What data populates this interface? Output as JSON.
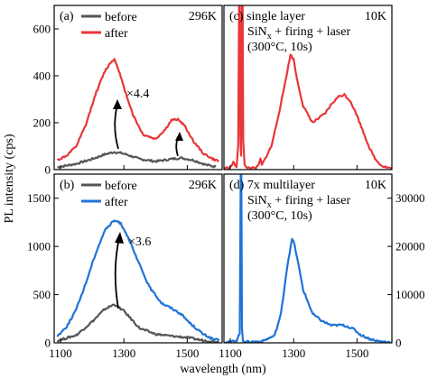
{
  "figure": {
    "ylabel": "PL intensity (cps)",
    "xlabel": "wavelength (nm)"
  },
  "chart_data": [
    {
      "type": "line",
      "panel": "(a)",
      "temperature": "296K",
      "legend": [
        "before",
        "after"
      ],
      "annotation": "×4.4",
      "ylim": [
        0,
        700
      ],
      "yticks": [
        "0",
        "200",
        "400",
        "600"
      ],
      "xlim": [
        1080,
        1610
      ],
      "xticks": [
        1100,
        1300,
        1500
      ],
      "series": [
        {
          "name": "before",
          "color": "#555555",
          "x": [
            1090,
            1150,
            1200,
            1240,
            1270,
            1300,
            1350,
            1400,
            1450,
            1480,
            1520,
            1560,
            1590
          ],
          "y": [
            10,
            25,
            45,
            65,
            75,
            68,
            45,
            35,
            45,
            50,
            40,
            20,
            12
          ]
        },
        {
          "name": "after",
          "color": "#e8363a",
          "x": [
            1090,
            1120,
            1150,
            1180,
            1210,
            1240,
            1260,
            1270,
            1280,
            1300,
            1330,
            1360,
            1400,
            1430,
            1450,
            1470,
            1490,
            1520,
            1550,
            1580,
            1600
          ],
          "y": [
            40,
            60,
            100,
            190,
            320,
            420,
            460,
            470,
            440,
            350,
            230,
            150,
            130,
            170,
            210,
            215,
            190,
            120,
            70,
            45,
            35
          ]
        }
      ]
    },
    {
      "type": "line",
      "panel": "(b)",
      "temperature": "296K",
      "legend": [
        "before",
        "after"
      ],
      "annotation": "×3.6",
      "ylim": [
        0,
        1750
      ],
      "yticks": [
        "0",
        "500",
        "1000",
        "1500"
      ],
      "xlim": [
        1080,
        1610
      ],
      "xticks": [
        1100,
        1300,
        1500
      ],
      "series": [
        {
          "name": "before",
          "color": "#555555",
          "x": [
            1090,
            1150,
            1200,
            1240,
            1270,
            1300,
            1350,
            1400,
            1450,
            1500,
            1550,
            1600
          ],
          "y": [
            20,
            80,
            220,
            350,
            400,
            330,
            150,
            90,
            70,
            55,
            25,
            10
          ]
        },
        {
          "name": "after",
          "color": "#1f73d8",
          "x": [
            1090,
            1120,
            1150,
            1180,
            1210,
            1240,
            1270,
            1290,
            1310,
            1340,
            1380,
            1420,
            1450,
            1480,
            1510,
            1550,
            1580,
            1600
          ],
          "y": [
            70,
            170,
            350,
            620,
            920,
            1170,
            1270,
            1240,
            1120,
            880,
            580,
            410,
            360,
            300,
            200,
            90,
            40,
            25
          ]
        }
      ]
    },
    {
      "type": "line",
      "panel": "(c)",
      "title_lines": [
        "single layer",
        "SiNx + firing + laser",
        "(300°C, 10s)"
      ],
      "temperature": "10K",
      "ylim": [
        0,
        700
      ],
      "xlim": [
        1080,
        1610
      ],
      "xticks": [
        1100,
        1300,
        1500
      ],
      "series": [
        {
          "name": "",
          "color": "#e8363a",
          "x": [
            1080,
            1100,
            1110,
            1120,
            1125,
            1128,
            1130,
            1132,
            1134,
            1137,
            1139,
            1141,
            1145,
            1150,
            1180,
            1190,
            1195,
            1200,
            1230,
            1260,
            1280,
            1290,
            1300,
            1310,
            1330,
            1360,
            1400,
            1420,
            1440,
            1460,
            1480,
            1500,
            1520,
            1540,
            1560,
            1580,
            1600,
            1610
          ],
          "y": [
            5,
            10,
            30,
            10,
            100,
            700,
            700,
            150,
            60,
            700,
            700,
            120,
            20,
            10,
            5,
            20,
            45,
            20,
            100,
            280,
            420,
            490,
            470,
            390,
            270,
            200,
            240,
            280,
            310,
            320,
            290,
            230,
            160,
            90,
            40,
            15,
            8,
            5
          ]
        }
      ]
    },
    {
      "type": "line",
      "panel": "(d)",
      "title_lines": [
        "7x multilayer",
        "SiNx + firing + laser",
        "(300°C, 10s)"
      ],
      "temperature": "10K",
      "ylim": [
        0,
        35000
      ],
      "yticks": [
        "0",
        "10000",
        "20000",
        "30000"
      ],
      "xlim": [
        1080,
        1610
      ],
      "xticks": [
        1100,
        1300,
        1500
      ],
      "series": [
        {
          "name": "",
          "color": "#1f73d8",
          "x": [
            1080,
            1100,
            1120,
            1130,
            1133,
            1135,
            1137,
            1140,
            1150,
            1200,
            1240,
            1260,
            1280,
            1295,
            1300,
            1310,
            1330,
            1360,
            1390,
            1420,
            1450,
            1470,
            1490,
            1510,
            1540,
            1570,
            1600,
            1610
          ],
          "y": [
            100,
            200,
            500,
            2000,
            35000,
            35000,
            3000,
            500,
            200,
            300,
            1500,
            6000,
            16000,
            21500,
            21000,
            18000,
            11000,
            6000,
            4500,
            3600,
            3700,
            3400,
            2800,
            1700,
            800,
            300,
            150,
            100
          ]
        }
      ]
    }
  ]
}
